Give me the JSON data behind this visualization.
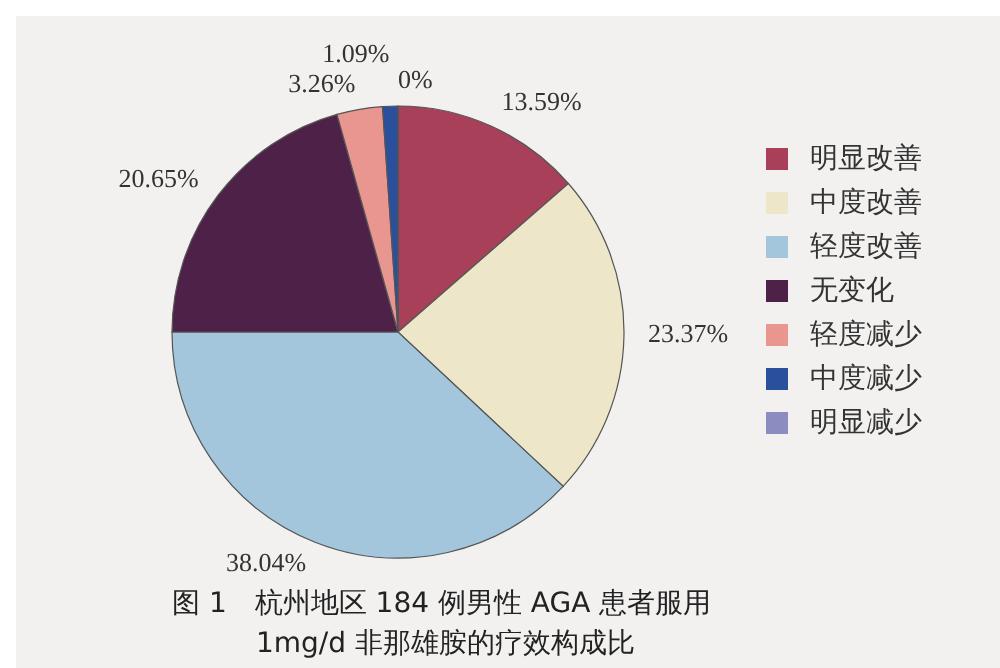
{
  "chart_data": {
    "type": "pie",
    "categories": [
      "明显改善",
      "中度改善",
      "轻度改善",
      "无变化",
      "轻度减少",
      "中度减少",
      "明显减少"
    ],
    "values": [
      13.59,
      23.37,
      38.04,
      20.65,
      3.26,
      1.09,
      0
    ],
    "value_labels": [
      "13.59%",
      "23.37%",
      "38.04%",
      "20.65%",
      "3.26%",
      "1.09%",
      "0%"
    ],
    "colors": [
      "#a8405a",
      "#ede6c8",
      "#a3c6dc",
      "#4e2148",
      "#e8968f",
      "#2a4f9c",
      "#8b8cc0"
    ],
    "legend": "right",
    "annotations": [
      "图 1　杭州地区 184 例男性 AGA 患者服用",
      "1mg/d 非那雄胺的疗效构成比"
    ]
  }
}
